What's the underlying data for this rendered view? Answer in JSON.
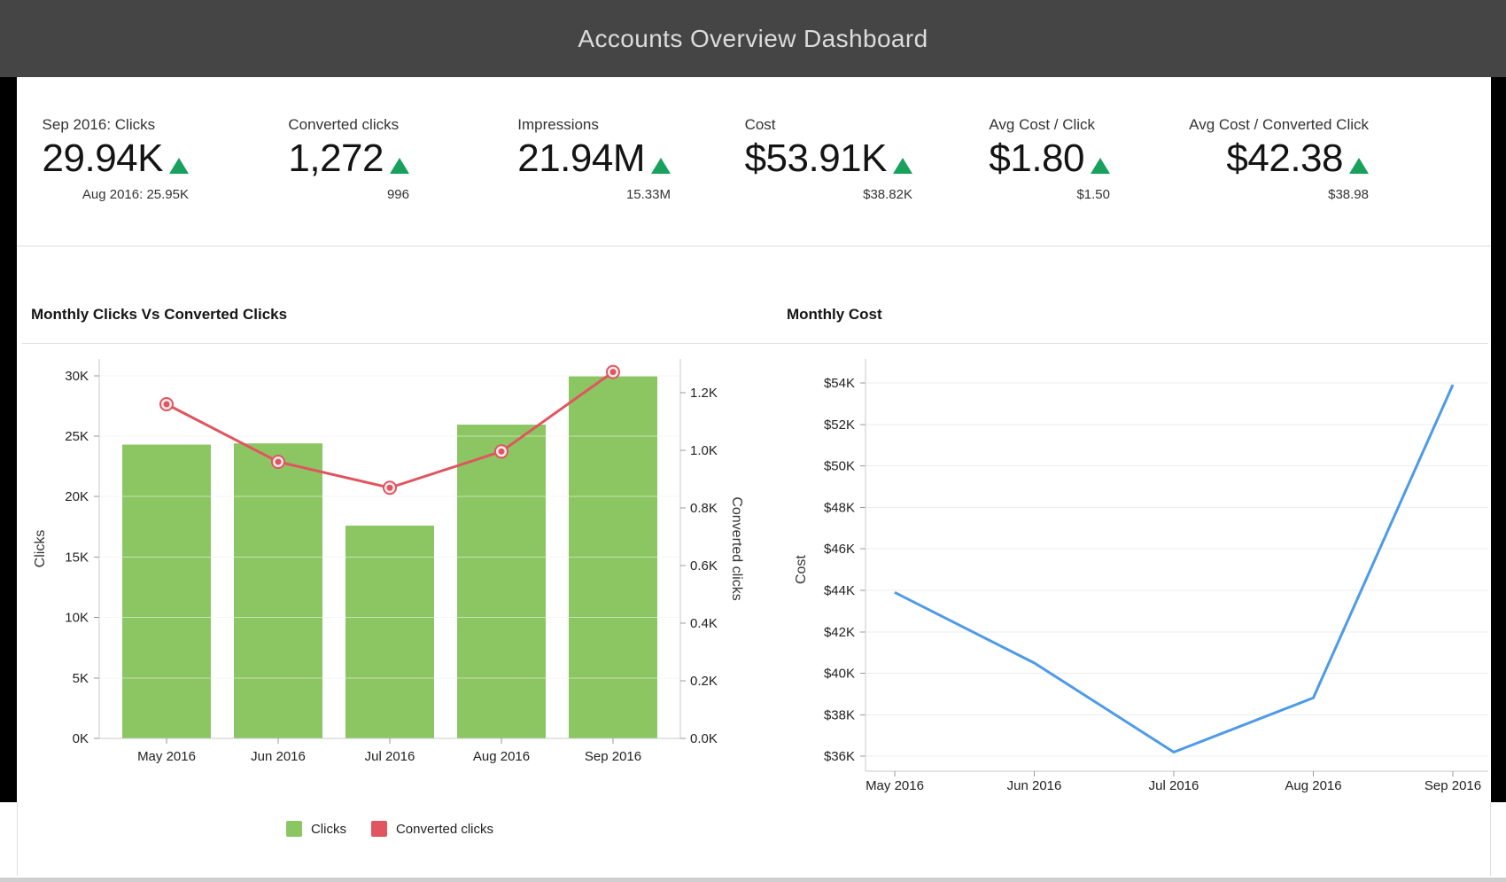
{
  "header": {
    "title": "Accounts Overview Dashboard"
  },
  "colors": {
    "header_bg": "#454545",
    "positive_trend": "#17a15c",
    "bar_green": "#8cc663",
    "line_red": "#e0555f",
    "line_blue": "#4d9ae9",
    "frame_black": "#000000"
  },
  "kpis": [
    {
      "label": "Sep 2016: Clicks",
      "value": "29.94K",
      "trend": "up",
      "previous": "Aug 2016: 25.95K"
    },
    {
      "label": "Converted clicks",
      "value": "1,272",
      "trend": "up",
      "previous": "996"
    },
    {
      "label": "Impressions",
      "value": "21.94M",
      "trend": "up",
      "previous": "15.33M"
    },
    {
      "label": "Cost",
      "value": "$53.91K",
      "trend": "up",
      "previous": "$38.82K"
    },
    {
      "label": "Avg Cost / Click",
      "value": "$1.80",
      "trend": "up",
      "previous": "$1.50"
    },
    {
      "label": "Avg Cost / Converted Click",
      "value": "$42.38",
      "trend": "up",
      "previous": "$38.98"
    }
  ],
  "chart_data": [
    {
      "type": "bar",
      "title": "Monthly Clicks Vs Converted Clicks",
      "categories": [
        "May 2016",
        "Jun 2016",
        "Jul 2016",
        "Aug 2016",
        "Sep 2016"
      ],
      "series": [
        {
          "name": "Clicks",
          "type": "bar",
          "axis": "left",
          "color": "#8cc663",
          "values": [
            24300,
            24400,
            17600,
            25950,
            29940
          ]
        },
        {
          "name": "Converted clicks",
          "type": "line",
          "axis": "right",
          "color": "#e0555f",
          "values": [
            1160,
            960,
            870,
            996,
            1272
          ]
        }
      ],
      "left_axis": {
        "label": "Clicks",
        "min": 0,
        "max": 30000,
        "ticks": [
          "0K",
          "5K",
          "10K",
          "15K",
          "20K",
          "25K",
          "30K"
        ]
      },
      "right_axis": {
        "label": "Converted clicks",
        "min": 0,
        "max": 1300,
        "ticks": [
          "0.0K",
          "0.2K",
          "0.4K",
          "0.6K",
          "0.8K",
          "1.0K",
          "1.2K"
        ]
      },
      "grid": true,
      "legend_position": "bottom",
      "legend": [
        {
          "label": "Clicks",
          "color": "#8cc663"
        },
        {
          "label": "Converted clicks",
          "color": "#e0555f"
        }
      ]
    },
    {
      "type": "line",
      "title": "Monthly Cost",
      "categories": [
        "May 2016",
        "Jun 2016",
        "Jul 2016",
        "Aug 2016",
        "Sep 2016"
      ],
      "series": [
        {
          "name": "Cost",
          "color": "#4d9ae9",
          "values": [
            43900,
            40500,
            36200,
            38820,
            53910
          ]
        }
      ],
      "y_axis": {
        "label": "Cost",
        "min": 36000,
        "max": 54000,
        "ticks": [
          "$36K",
          "$38K",
          "$40K",
          "$42K",
          "$44K",
          "$46K",
          "$48K",
          "$50K",
          "$52K",
          "$54K"
        ]
      },
      "grid": true,
      "legend_position": "none"
    }
  ]
}
